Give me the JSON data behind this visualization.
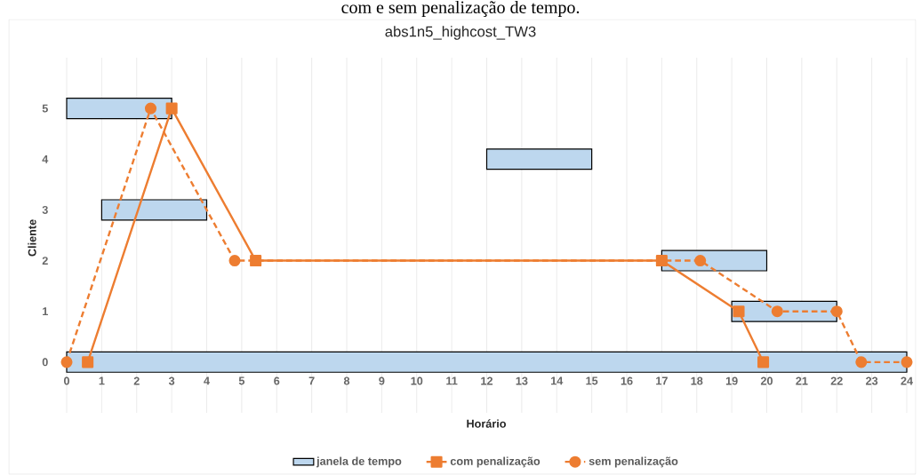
{
  "chart_data": {
    "type": "bar",
    "title": "abs1n5_highcost_TW3",
    "annotations": [
      "com e sem penalização de tempo."
    ],
    "xlabel": "Horário",
    "ylabel": "Cliente",
    "orientation": "horizontal",
    "xlim": [
      0,
      24
    ],
    "ylim": [
      -1,
      6
    ],
    "xticks": [
      0,
      1,
      2,
      3,
      4,
      5,
      6,
      7,
      8,
      9,
      10,
      11,
      12,
      13,
      14,
      15,
      16,
      17,
      18,
      19,
      20,
      21,
      22,
      23,
      24
    ],
    "yticks": [
      0,
      1,
      2,
      3,
      4,
      5
    ],
    "grid": "x",
    "legend": "bottom",
    "series": [
      {
        "name": "janela de tempo",
        "color": "#bdd7ee",
        "x": [
          0,
          1,
          2,
          3,
          4,
          5
        ],
        "base": [
          0,
          19,
          17,
          1,
          12,
          0
        ],
        "values": [
          24,
          3,
          3,
          3,
          3,
          3
        ]
      },
      {
        "type": "line",
        "name": "com penalização",
        "color": "#ed7d31",
        "marker": "square",
        "line_style": "solid",
        "x": [
          0,
          5,
          2,
          2,
          1,
          0
        ],
        "values": [
          0.6,
          3,
          5.4,
          17,
          19.2,
          19.9
        ]
      },
      {
        "type": "line",
        "name": "sem penalização",
        "color": "#ed7d31",
        "marker": "circle",
        "line_style": "dashed",
        "x": [
          0,
          5,
          2,
          2,
          1,
          1,
          0,
          0
        ],
        "values": [
          0,
          2.4,
          4.8,
          18.1,
          20.3,
          22,
          22.7,
          24
        ]
      }
    ]
  }
}
